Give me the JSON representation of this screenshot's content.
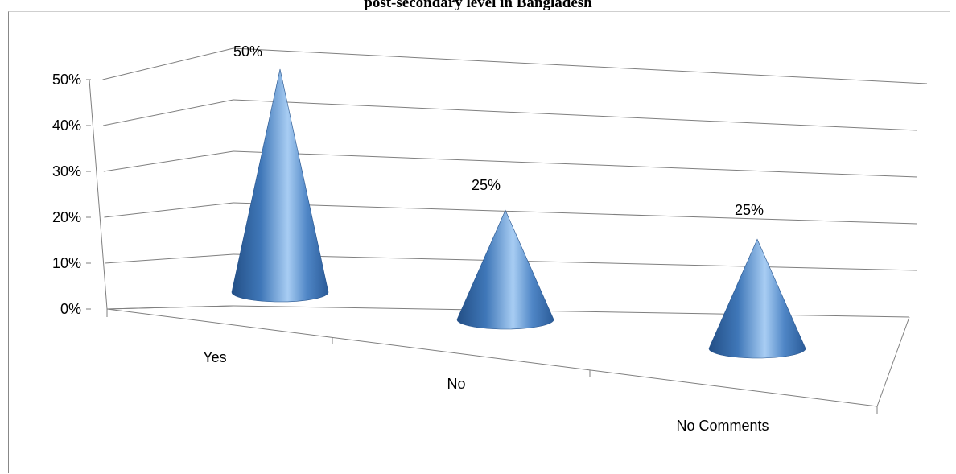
{
  "page_title": "post-secondary level in Bangladesh",
  "colors": {
    "cone_dark": "#2a5b98",
    "cone_mid": "#4f86c6",
    "cone_light": "#a8cdf3",
    "gridline": "#7f7f7f",
    "text": "#000000"
  },
  "chart_data": {
    "type": "bar",
    "bar_shape": "cone-3d",
    "title": "post-secondary level in Bangladesh",
    "categories": [
      "Yes",
      "No",
      "No Comments"
    ],
    "values": [
      50,
      25,
      25
    ],
    "data_labels": [
      "50%",
      "25%",
      "25%"
    ],
    "y_ticks": [
      "0%",
      "10%",
      "20%",
      "30%",
      "40%",
      "50%"
    ],
    "y_tick_values": [
      0,
      10,
      20,
      30,
      40,
      50
    ],
    "ylim": [
      0,
      50
    ],
    "xlabel": "",
    "ylabel": "",
    "grid": true,
    "legend": "none"
  }
}
